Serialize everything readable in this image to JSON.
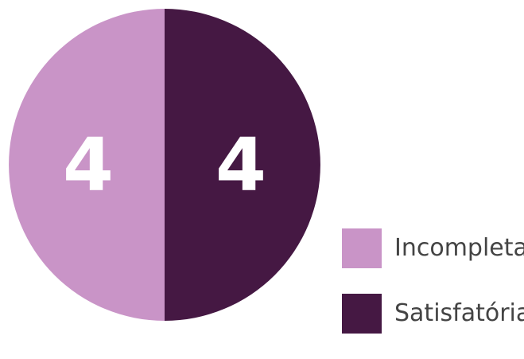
{
  "chart_data": {
    "type": "pie",
    "title": "",
    "categories": [
      "Incompleta",
      "Satisfatória"
    ],
    "values": [
      4,
      4
    ],
    "data_labels": [
      "4",
      "4"
    ],
    "colors": [
      "#c994c7",
      "#451843"
    ],
    "legend": {
      "placement": "bottom-right",
      "entries": [
        "Incompleta",
        "Satisfatória"
      ]
    },
    "start_angle_degrees": 0,
    "direction": "counterclockwise-from-top"
  }
}
